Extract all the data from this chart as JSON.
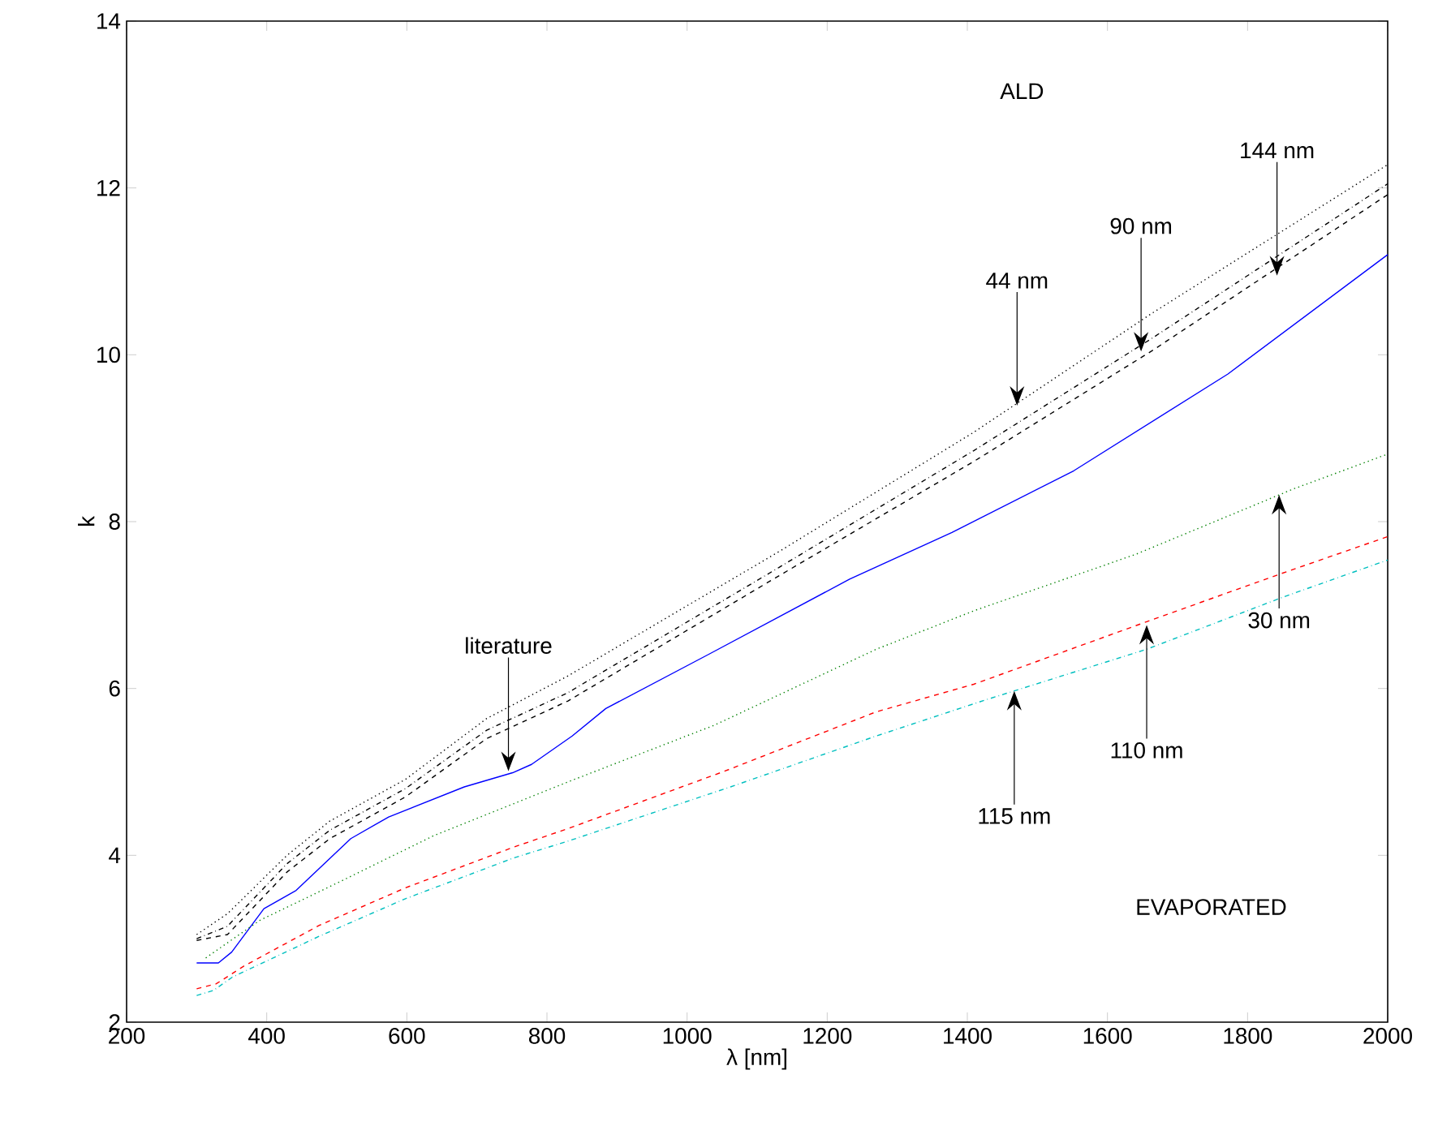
{
  "chart_data": {
    "type": "line",
    "xlabel": "λ [nm]",
    "ylabel": "k",
    "xlim": [
      200,
      2000
    ],
    "ylim": [
      2,
      14
    ],
    "xticks": [
      200,
      400,
      600,
      800,
      1000,
      1200,
      1400,
      1600,
      1800,
      2000
    ],
    "yticks": [
      2,
      4,
      6,
      8,
      10,
      12,
      14
    ],
    "grid": false,
    "series": [
      {
        "color": "#0000ff",
        "line_style": "solid",
        "x": [
          300,
          331,
          350,
          396,
          442,
          520,
          574,
          682,
          751,
          778,
          836,
          884,
          1031,
          1232,
          1378,
          1552,
          1772,
          2000
        ],
        "values": [
          2.71,
          2.71,
          2.84,
          3.36,
          3.58,
          4.2,
          4.46,
          4.82,
          4.99,
          5.09,
          5.43,
          5.76,
          6.41,
          7.31,
          7.87,
          8.61,
          9.77,
          11.2
        ]
      },
      {
        "color": "#000000",
        "line_style": "dotted",
        "x": [
          300,
          344,
          429,
          490,
          598,
          714,
          830,
          1131,
          1409,
          1664,
          2000
        ],
        "values": [
          3.05,
          3.3,
          4.0,
          4.41,
          4.91,
          5.64,
          6.15,
          7.64,
          9.07,
          10.5,
          12.28
        ]
      },
      {
        "color": "#000000",
        "line_style": "dashdot",
        "x": [
          300,
          344,
          429,
          490,
          598,
          714,
          830,
          1131,
          1409,
          1664,
          2000
        ],
        "values": [
          3.0,
          3.15,
          3.9,
          4.3,
          4.8,
          5.5,
          5.95,
          7.45,
          8.85,
          10.2,
          12.05
        ]
      },
      {
        "color": "#000000",
        "line_style": "dashed",
        "x": [
          300,
          344,
          429,
          490,
          598,
          714,
          830,
          1131,
          1409,
          1664,
          2000
        ],
        "values": [
          2.98,
          3.05,
          3.8,
          4.2,
          4.7,
          5.4,
          5.85,
          7.35,
          8.72,
          10.05,
          11.92
        ]
      },
      {
        "color": "#008000",
        "line_style": "dotted",
        "x": [
          313,
          390,
          506,
          637,
          753,
          830,
          1039,
          1270,
          1409,
          1641,
          1865,
          2000
        ],
        "values": [
          2.77,
          3.22,
          3.69,
          4.23,
          4.62,
          4.88,
          5.56,
          6.47,
          6.93,
          7.61,
          8.39,
          8.81
        ]
      },
      {
        "color": "#ff0000",
        "line_style": "dashed",
        "x": [
          300,
          328,
          367,
          475,
          598,
          753,
          830,
          1054,
          1270,
          1409,
          1656,
          1849,
          2000
        ],
        "values": [
          2.4,
          2.46,
          2.67,
          3.16,
          3.61,
          4.1,
          4.32,
          5.01,
          5.72,
          6.05,
          6.8,
          7.38,
          7.82
        ]
      },
      {
        "color": "#00bfbf",
        "line_style": "dashdot",
        "x": [
          300,
          324,
          351,
          475,
          598,
          753,
          830,
          1062,
          1270,
          1425,
          1656,
          1849,
          2000
        ],
        "values": [
          2.32,
          2.38,
          2.54,
          3.03,
          3.48,
          3.97,
          4.17,
          4.82,
          5.43,
          5.86,
          6.47,
          7.09,
          7.54
        ]
      }
    ],
    "annotations": [
      {
        "text": "literature",
        "x": 745,
        "y": 5.01
      },
      {
        "text": "44 nm",
        "x": 1471,
        "y": 9.39
      },
      {
        "text": "90 nm",
        "x": 1648,
        "y": 10.04
      },
      {
        "text": "144 nm",
        "x": 1842,
        "y": 10.95
      },
      {
        "text": "115 nm",
        "x": 1467,
        "y": 5.97
      },
      {
        "text": "110 nm",
        "x": 1656,
        "y": 6.76
      },
      {
        "text": "30 nm",
        "x": 1845,
        "y": 8.32
      },
      "ALD",
      "EVAPORATED"
    ]
  }
}
